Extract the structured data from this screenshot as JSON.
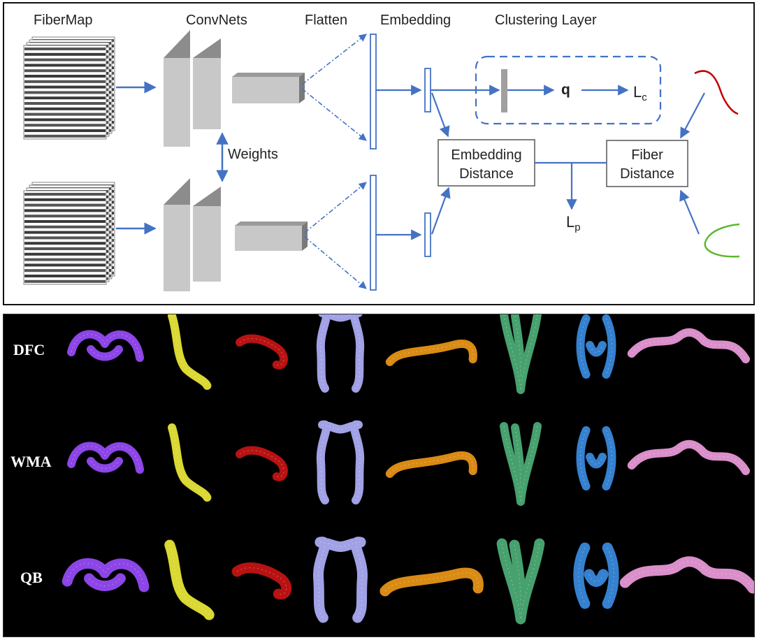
{
  "diagram": {
    "headers": {
      "fibermap": "FiberMap",
      "convnets": "ConvNets",
      "flatten": "Flatten",
      "embedding": "Embedding",
      "clustering": "Clustering Layer"
    },
    "weights_label": "Weights",
    "q_label": "q",
    "lc_label": "L",
    "lc_sub": "c",
    "lp_label": "L",
    "lp_sub": "p",
    "embedding_distance": [
      "Embedding",
      "Distance"
    ],
    "fiber_distance": [
      "Fiber",
      "Distance"
    ],
    "colors": {
      "arrow": "#4472c4",
      "curve_red": "#c00000",
      "curve_green": "#5cb82e",
      "block_front": "#c8c8c8",
      "block_side": "#8c8c8c"
    }
  },
  "tract_grid": {
    "row_labels": [
      "DFC",
      "WMA",
      "QB"
    ],
    "column_colors": [
      "#9b4dff",
      "#f2ef38",
      "#cc1414",
      "#b3b3ff",
      "#f29a16",
      "#4fb27a",
      "#3b8fe6",
      "#f29ee0"
    ],
    "column_shapes": [
      "arch",
      "hook",
      "blob",
      "pillars",
      "bridge",
      "vtract",
      "ring",
      "wings"
    ]
  }
}
